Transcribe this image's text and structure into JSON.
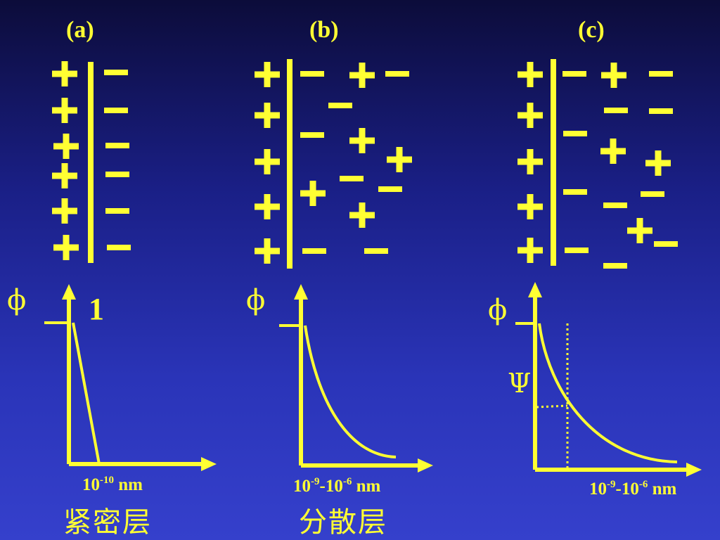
{
  "panels": {
    "a": {
      "label": "(a)",
      "phi": "ϕ",
      "marker": "1",
      "axis_label": {
        "base": "10",
        "exp": "-10",
        "unit": " nm"
      },
      "caption": "紧密层"
    },
    "b": {
      "label": "(b)",
      "phi": "ϕ",
      "axis_label": {
        "base1": "10",
        "exp1": "-9",
        "sep": "-10",
        "exp2": "-6",
        "unit": " nm"
      },
      "caption": "分散层"
    },
    "c": {
      "label": "(c)",
      "phi": "ϕ",
      "psi": "Ψ",
      "axis_label": {
        "base1": "10",
        "exp1": "-9",
        "sep": "-10",
        "exp2": "-6",
        "unit": " nm"
      }
    }
  },
  "colors": {
    "ink": "#ffff33",
    "background_top": "#0c0c3a",
    "background_bottom": "#3540cc"
  }
}
